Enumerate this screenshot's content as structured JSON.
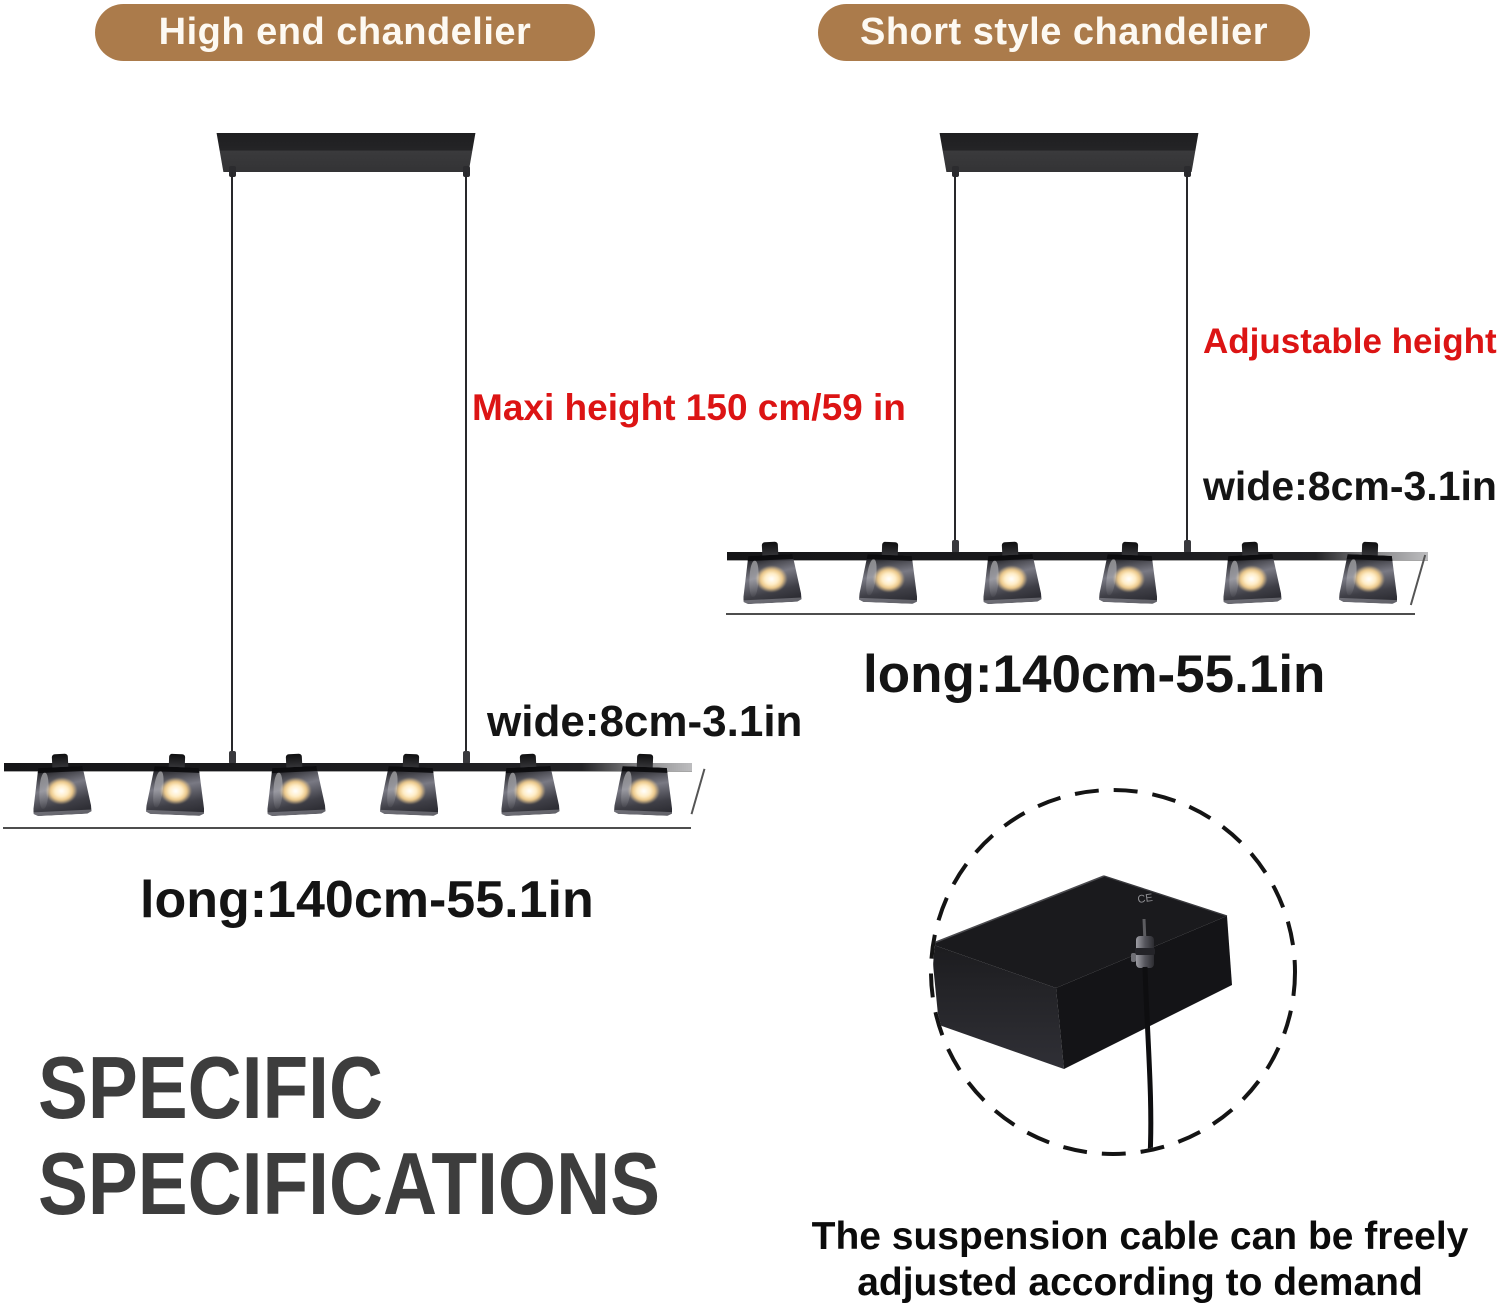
{
  "badges": {
    "left_label": "High end chandelier",
    "right_label": "Short style chandelier"
  },
  "left_chandelier": {
    "max_height_label": "Maxi height 150 cm/59 in",
    "width_label": "wide:8cm-3.1in",
    "length_label": "long:140cm-55.1in",
    "lamp_count": 6
  },
  "right_chandelier": {
    "adjustable_label": "Adjustable height",
    "width_label": "wide:8cm-3.1in",
    "length_label": "long:140cm-55.1in",
    "lamp_count": 6
  },
  "section_title": {
    "line1": "SPECIFIC",
    "line2": "SPECIFICATIONS"
  },
  "detail": {
    "caption_line1": "The suspension cable can be freely",
    "caption_line2": "adjusted according to demand",
    "ce_mark": "CE"
  },
  "colors": {
    "badge_brown": "#ab7b4b",
    "accent_red": "#dc1414",
    "title_gray": "#3d3d3d",
    "metal_black": "#1b1b1d"
  }
}
